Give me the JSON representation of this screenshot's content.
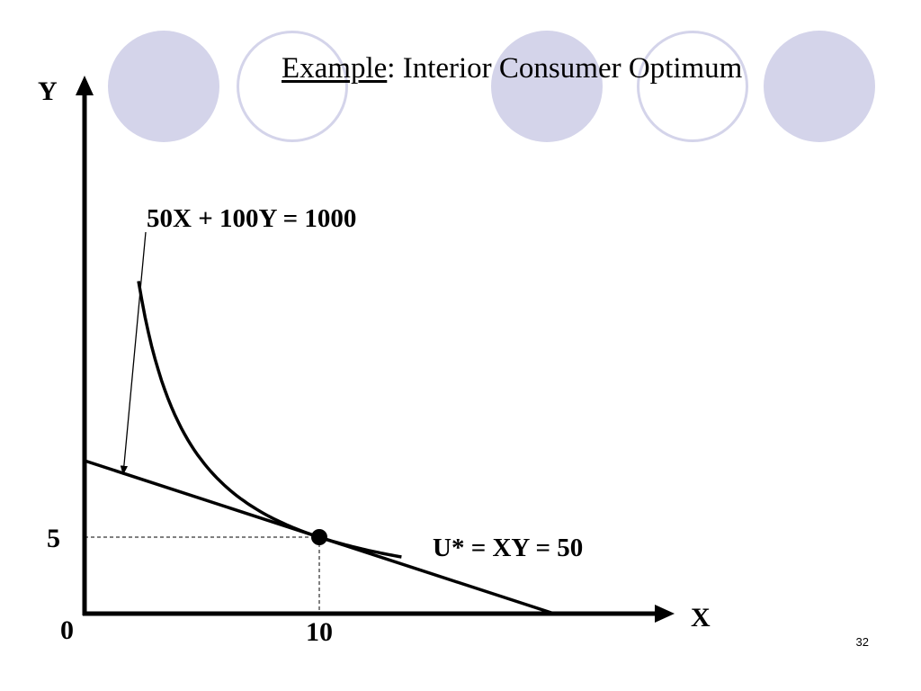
{
  "slide": {
    "title_underlined": "Example",
    "title_rest": ": Interior Consumer Optimum",
    "page_number": "32",
    "decoration_color": "#d4d4ea"
  },
  "chart_data": {
    "type": "line",
    "xlabel": "X",
    "ylabel": "Y",
    "origin_label": "0",
    "x_tick_label": "10",
    "y_tick_label": "5",
    "xlim": [
      0,
      21
    ],
    "ylim": [
      0,
      22
    ],
    "budget_line": {
      "label": "50X + 100Y = 1000",
      "price_x": 50,
      "price_y": 100,
      "income": 1000,
      "x_intercept": 20,
      "y_intercept": 10
    },
    "indifference_curve": {
      "label": "U* = XY = 50",
      "utility": 50,
      "x_range": [
        2.3,
        13.5
      ]
    },
    "optimum": {
      "x": 10,
      "y": 5
    }
  }
}
